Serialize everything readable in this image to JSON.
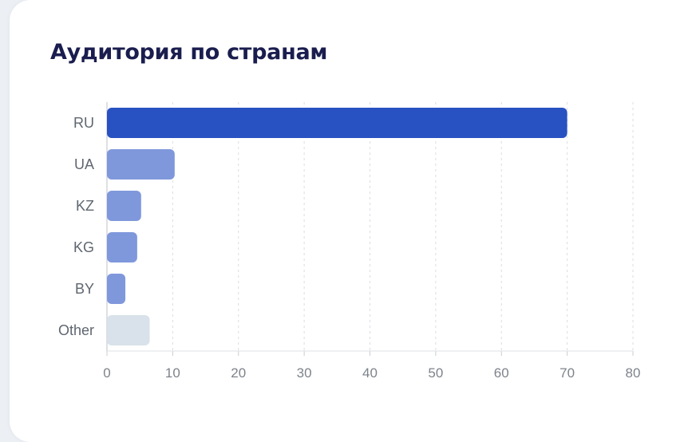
{
  "card": {
    "title": "Аудитория по странам"
  },
  "chart_data": {
    "type": "bar",
    "orientation": "horizontal",
    "title": "Аудитория по странам",
    "categories": [
      "RU",
      "UA",
      "KZ",
      "KG",
      "BY",
      "Other"
    ],
    "values": [
      70,
      10.3,
      5.2,
      4.6,
      2.8,
      6.5
    ],
    "colors": [
      "#2852c2",
      "#7f98dc",
      "#7f98dc",
      "#7f98dc",
      "#7f98dc",
      "#d9e2ea"
    ],
    "xticks": [
      0,
      10,
      20,
      30,
      40,
      50,
      60,
      70,
      80
    ],
    "xlim": [
      0,
      80
    ],
    "grid": "vertical-dashed",
    "legend": "none"
  }
}
